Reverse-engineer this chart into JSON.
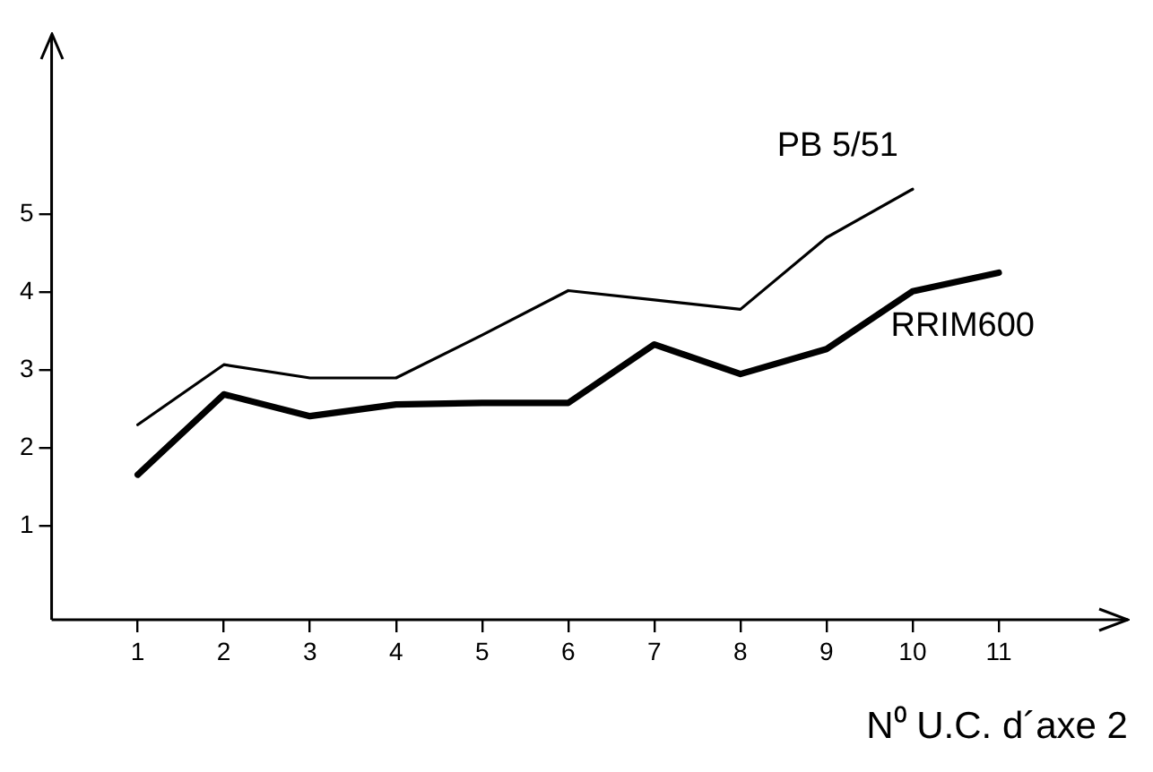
{
  "chart_data": {
    "type": "line",
    "xlabel": "N⁰ U.C. d´axe 2",
    "x": [
      1,
      2,
      3,
      4,
      5,
      6,
      7,
      8,
      9,
      10,
      11
    ],
    "series": [
      {
        "name": "PB 5/51",
        "color": "#000000",
        "x": [
          1,
          2,
          3,
          4,
          5,
          6,
          7,
          8,
          9,
          10
        ],
        "values": [
          2.3,
          3.07,
          2.9,
          2.9,
          3.45,
          4.02,
          3.9,
          3.78,
          4.7,
          5.32
        ]
      },
      {
        "name": "RRIM600",
        "color": "#000000",
        "values": [
          1.66,
          2.69,
          2.41,
          2.56,
          2.58,
          2.58,
          3.33,
          2.95,
          3.27,
          4.01,
          4.25
        ]
      }
    ],
    "xlim": [
      0,
      12.5
    ],
    "xticks": [
      1,
      2,
      3,
      4,
      5,
      6,
      7,
      8,
      9,
      10,
      11
    ],
    "ylim": [
      -0.2,
      7.3
    ],
    "yticks": [
      1,
      2,
      3,
      4,
      5
    ],
    "marker": "none",
    "line_style": "solid",
    "legend": false
  }
}
